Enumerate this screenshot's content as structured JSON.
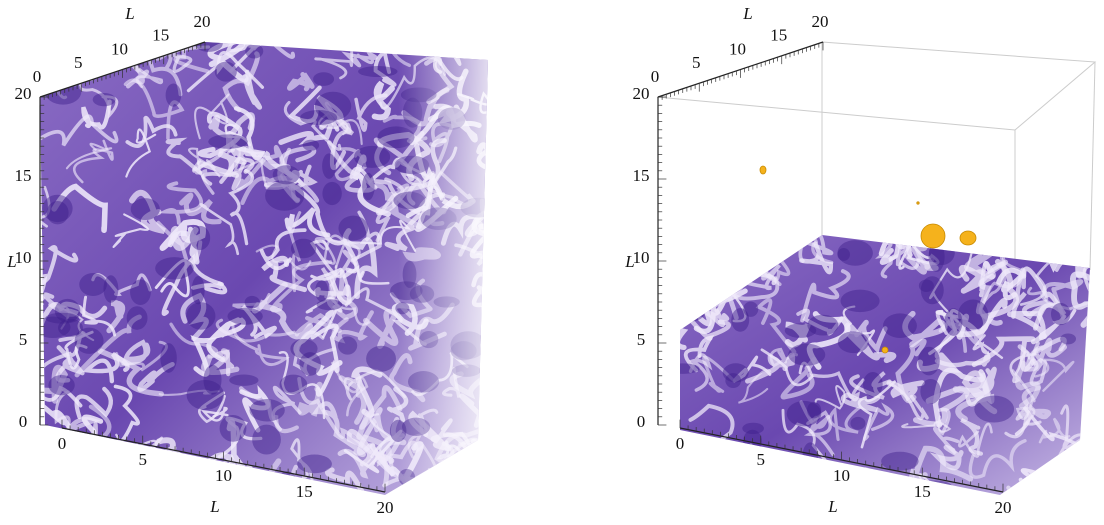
{
  "panels": [
    {
      "x_axis": {
        "label": "L",
        "ticks": [
          0,
          5,
          10,
          15,
          20
        ]
      },
      "y_axis": {
        "label": "L",
        "ticks": [
          0,
          5,
          10,
          15,
          20
        ]
      },
      "z_axis": {
        "label": "L",
        "ticks": [
          0,
          5,
          10,
          15,
          20
        ]
      }
    },
    {
      "x_axis": {
        "label": "L",
        "ticks": [
          0,
          5,
          10,
          15,
          20
        ]
      },
      "y_axis": {
        "label": "L",
        "ticks": [
          0,
          5,
          10,
          15,
          20
        ]
      },
      "z_axis": {
        "label": "L",
        "ticks": [
          0,
          5,
          10,
          15,
          20
        ]
      }
    }
  ]
}
